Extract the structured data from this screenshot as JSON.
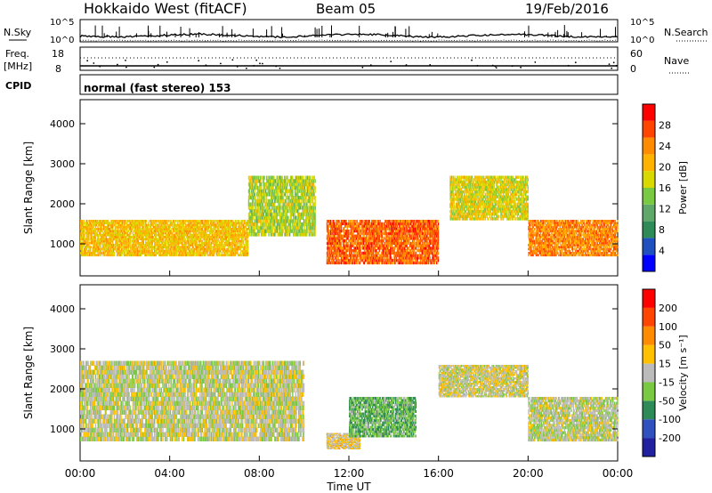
{
  "header": {
    "station": "Hokkaido West (fitACF)",
    "beam": "Beam 05",
    "date": "19/Feb/2016"
  },
  "noise_panel": {
    "left_label": "N.Sky",
    "right_label": "N.Search",
    "ticks_left": [
      "10^5",
      "10^0"
    ],
    "ticks_right": [
      "10^5",
      "10^0"
    ]
  },
  "freq_panel": {
    "left_label": "Freq.",
    "left_unit": "[MHz]",
    "right_label": "Nave",
    "ticks_left": [
      "18",
      "8"
    ],
    "ticks_right": [
      "60",
      "0"
    ]
  },
  "cpid": {
    "label": "CPID",
    "mode": "normal (fast stereo) 153"
  },
  "power_panel": {
    "ylabel": "Slant Range [km]",
    "colorbar_label": "Power [dB]",
    "colorbar_ticks": [
      "28",
      "24",
      "20",
      "16",
      "12",
      "8",
      "4"
    ],
    "colors": [
      "#0000ff",
      "#2050c0",
      "#2e8b57",
      "#5fa86a",
      "#7ac943",
      "#d9d900",
      "#ffb300",
      "#ff8c00",
      "#ff4500",
      "#ff0000"
    ]
  },
  "velocity_panel": {
    "ylabel": "Slant Range [km]",
    "colorbar_label": "Velocity [m s⁻¹]",
    "colorbar_ticks": [
      "200",
      "100",
      "50",
      "15",
      "-15",
      "-50",
      "-100",
      "-200"
    ],
    "colors": [
      "#2020a0",
      "#3050c0",
      "#2e8b57",
      "#7ac943",
      "#bbbbbb",
      "#ffc000",
      "#ff8c00",
      "#ff4500",
      "#ff0000"
    ]
  },
  "time_axis": {
    "xlabel": "Time UT",
    "ticks": [
      "00:00",
      "04:00",
      "08:00",
      "12:00",
      "16:00",
      "20:00",
      "00:00"
    ]
  },
  "chart_data": {
    "type": "heatmap",
    "title": "Hokkaido West (fitACF)   Beam 05   19/Feb/2016",
    "xlabel": "Time UT",
    "ylabel": "Slant Range [km]",
    "x_range_hours": [
      0,
      24
    ],
    "y_range_km": [
      200,
      4600
    ],
    "yticks": [
      1000,
      2000,
      3000,
      4000
    ],
    "panels": [
      {
        "name": "Power [dB]",
        "zlim": [
          0,
          32
        ],
        "features": [
          {
            "t": [
              0,
              7.5
            ],
            "range_km": [
              700,
              1600
            ],
            "value": 20
          },
          {
            "t": [
              7.5,
              10.5
            ],
            "range_km": [
              1200,
              2700
            ],
            "value": 16
          },
          {
            "t": [
              11,
              16
            ],
            "range_km": [
              500,
              1600
            ],
            "value": 26
          },
          {
            "t": [
              16.5,
              20
            ],
            "range_km": [
              1600,
              2700
            ],
            "value": 18
          },
          {
            "t": [
              20,
              24
            ],
            "range_km": [
              700,
              1600
            ],
            "value": 24
          }
        ]
      },
      {
        "name": "Velocity [m s-1]",
        "zlim": [
          -250,
          250
        ],
        "features": [
          {
            "t": [
              0,
              10
            ],
            "range_km": [
              700,
              2700
            ],
            "value": 0
          },
          {
            "t": [
              11,
              12.5
            ],
            "range_km": [
              500,
              900
            ],
            "value": 30
          },
          {
            "t": [
              12,
              15
            ],
            "range_km": [
              800,
              1800
            ],
            "value": -70
          },
          {
            "t": [
              16,
              20
            ],
            "range_km": [
              1800,
              2600
            ],
            "value": 10
          },
          {
            "t": [
              20,
              24
            ],
            "range_km": [
              700,
              1800
            ],
            "value": -5
          }
        ]
      }
    ]
  }
}
